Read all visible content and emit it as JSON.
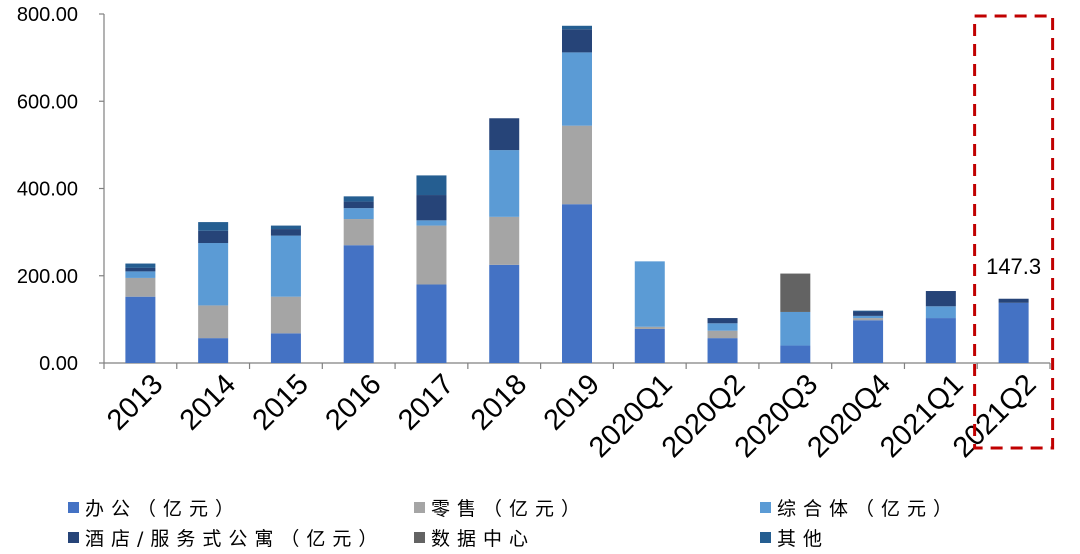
{
  "chart_data": {
    "type": "bar",
    "stacked": true,
    "categories": [
      "2013",
      "2014",
      "2015",
      "2016",
      "2017",
      "2018",
      "2019",
      "2020Q1",
      "2020Q2",
      "2020Q3",
      "2020Q4",
      "2021Q1",
      "2021Q2"
    ],
    "series": [
      {
        "name": "办公（亿元）",
        "color": "#4472C4",
        "values": [
          152,
          57,
          68,
          270,
          180,
          225,
          364,
          78,
          57,
          40,
          98,
          103,
          138
        ]
      },
      {
        "name": "零售（亿元）",
        "color": "#A5A5A5",
        "values": [
          43,
          75,
          84,
          60,
          135,
          110,
          180,
          5,
          17,
          0,
          5,
          0,
          0
        ]
      },
      {
        "name": "综合体（亿元）",
        "color": "#5B9BD5",
        "values": [
          15,
          143,
          140,
          25,
          12,
          153,
          168,
          150,
          17,
          77,
          5,
          27,
          0
        ]
      },
      {
        "name": "酒店/服务式公寓（亿元）",
        "color": "#264478",
        "values": [
          8,
          28,
          15,
          15,
          58,
          73,
          53,
          0,
          12,
          0,
          10,
          35,
          9.3
        ]
      },
      {
        "name": "数据中心",
        "color": "#636363",
        "values": [
          0,
          0,
          0,
          0,
          0,
          0,
          0,
          0,
          0,
          88,
          0,
          0,
          0
        ]
      },
      {
        "name": "其他",
        "color": "#255E91",
        "values": [
          10,
          20,
          8,
          12,
          45,
          0,
          8,
          0,
          0,
          0,
          2,
          0,
          0
        ]
      }
    ],
    "yticks": [
      "800.00",
      "600.00",
      "400.00",
      "200.00",
      "0.00"
    ],
    "ylim": [
      0,
      800
    ],
    "annotation": {
      "category": "2021Q2",
      "label": "147.3",
      "highlight_color": "#C00000"
    },
    "legend_position": "bottom",
    "grid": false
  }
}
